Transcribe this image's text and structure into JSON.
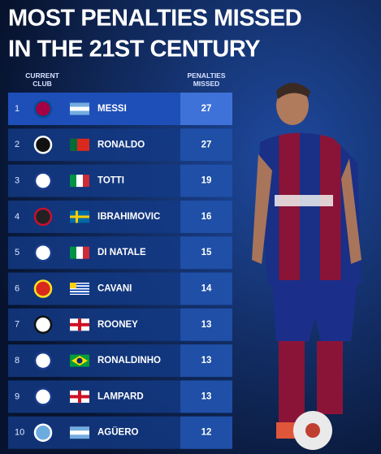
{
  "title": [
    "MOST PENALTIES MISSED",
    "IN THE 21ST CENTURY"
  ],
  "table": {
    "headers": {
      "club": "CURRENT CLUB",
      "missed": "PENALTIES MISSED"
    },
    "rows": [
      {
        "rank": "1",
        "player": "MESSI",
        "missed": "27"
      },
      {
        "rank": "2",
        "player": "RONALDO",
        "missed": "27"
      },
      {
        "rank": "3",
        "player": "TOTTI",
        "missed": "19"
      },
      {
        "rank": "4",
        "player": "IBRAHIMOVIC",
        "missed": "16"
      },
      {
        "rank": "5",
        "player": "DI NATALE",
        "missed": "15"
      },
      {
        "rank": "6",
        "player": "CAVANI",
        "missed": "14"
      },
      {
        "rank": "7",
        "player": "ROONEY",
        "missed": "13"
      },
      {
        "rank": "8",
        "player": "RONALDINHO",
        "missed": "13"
      },
      {
        "rank": "9",
        "player": "LAMPARD",
        "missed": "13"
      },
      {
        "rank": "10",
        "player": "AGÜERO",
        "missed": "12"
      }
    ]
  }
}
